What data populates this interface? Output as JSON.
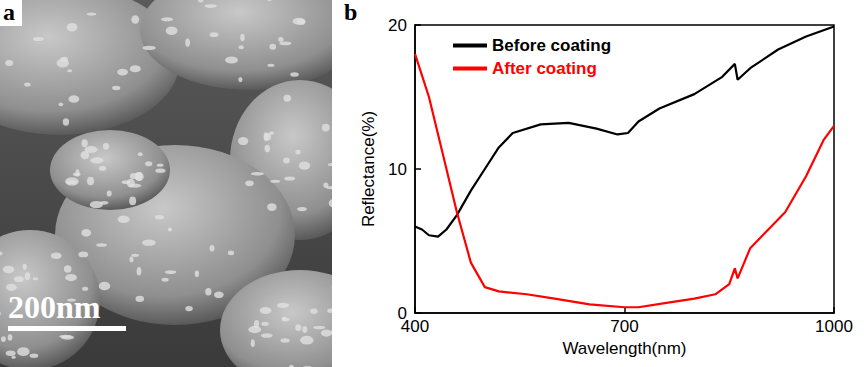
{
  "image_panel": {
    "panel_label": "a",
    "scale_bar": "200nm"
  },
  "chart_data": {
    "type": "line",
    "panel_label": "b",
    "x_label": "Wavelength(nm)",
    "y_label": "Reflectance(%)",
    "xlim": [
      400,
      1000
    ],
    "xticks": [
      400,
      700,
      1000
    ],
    "ylim": [
      0,
      20
    ],
    "yticks": [
      0,
      10,
      20
    ],
    "grid": false,
    "legend": "upper left",
    "series": [
      {
        "name": "Before coating",
        "color": "#000000",
        "marker": "none",
        "line_style": "solid",
        "x": [
          400,
          410,
          420,
          433,
          445,
          460,
          480,
          500,
          520,
          540,
          580,
          620,
          660,
          690,
          705,
          720,
          750,
          800,
          840,
          858,
          862,
          880,
          920,
          960,
          1000
        ],
        "values": [
          6.0,
          5.8,
          5.4,
          5.3,
          5.8,
          6.8,
          8.5,
          10.0,
          11.5,
          12.5,
          13.1,
          13.2,
          12.8,
          12.4,
          12.5,
          13.3,
          14.2,
          15.2,
          16.4,
          17.3,
          16.2,
          17.0,
          18.3,
          19.2,
          19.9
        ]
      },
      {
        "name": "After coating",
        "color": "#ff0000",
        "marker": "none",
        "line_style": "solid",
        "x": [
          400,
          420,
          440,
          460,
          480,
          500,
          520,
          560,
          600,
          650,
          700,
          720,
          760,
          800,
          830,
          850,
          858,
          862,
          880,
          900,
          930,
          960,
          985,
          1000
        ],
        "values": [
          18.0,
          15.0,
          11.0,
          7.0,
          3.5,
          1.8,
          1.5,
          1.3,
          1.0,
          0.6,
          0.4,
          0.4,
          0.7,
          1.0,
          1.3,
          2.0,
          3.1,
          2.4,
          4.5,
          5.5,
          7.0,
          9.5,
          12.0,
          13.0
        ]
      }
    ]
  }
}
